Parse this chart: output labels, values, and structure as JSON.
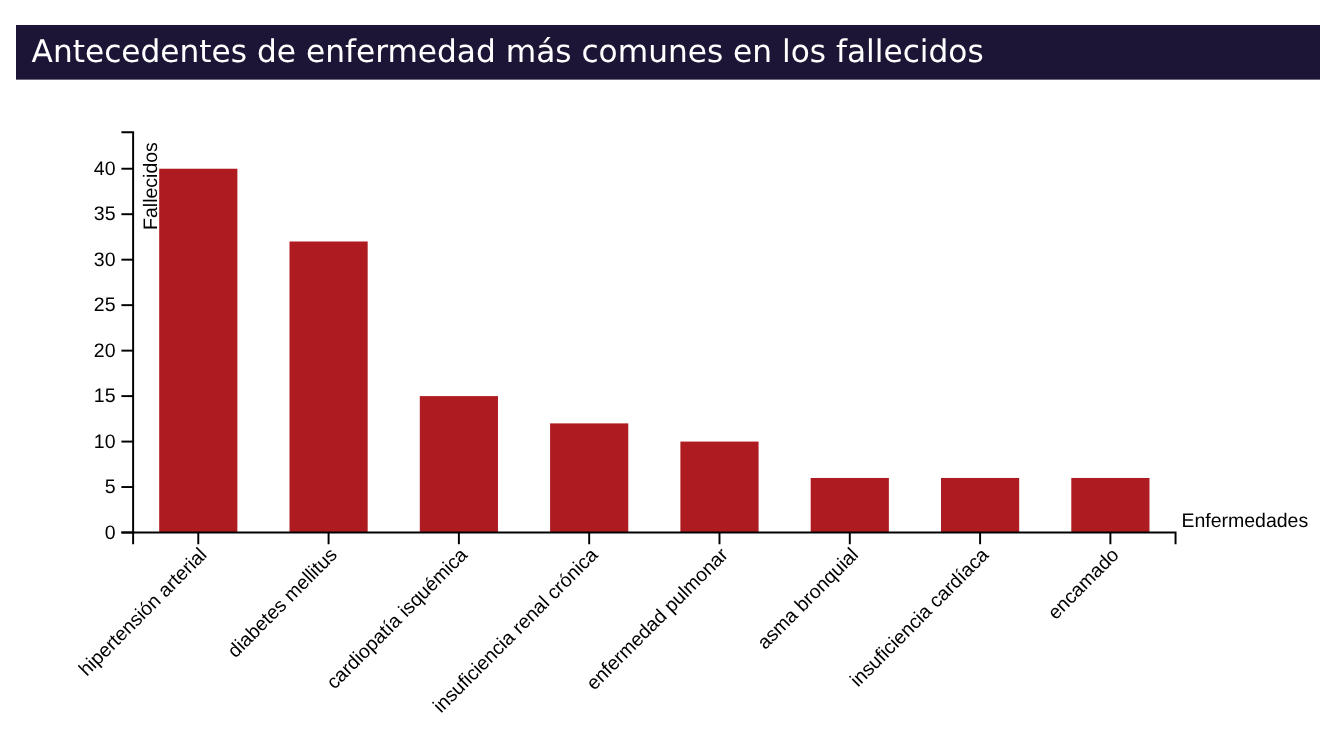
{
  "chart_data": {
    "type": "bar",
    "title": "Antecedentes de enfermedad más comunes en los fallecidos",
    "xlabel": "Enfermedades",
    "ylabel": "Fallecidos",
    "categories": [
      "hipertensión arterial",
      "diabetes mellitus",
      "cardiopatía isquémica",
      "insuficiencia renal crónica",
      "enfermedad pulmonar",
      "asma bronquial",
      "insuficiencia cardíaca",
      "encamado"
    ],
    "values": [
      40,
      32,
      15,
      12,
      10,
      6,
      6,
      6
    ],
    "color": "#ae1c22",
    "ylim": [
      0,
      44
    ],
    "yticks": [
      0,
      5,
      10,
      15,
      20,
      25,
      30,
      35,
      40
    ],
    "grid": false
  }
}
